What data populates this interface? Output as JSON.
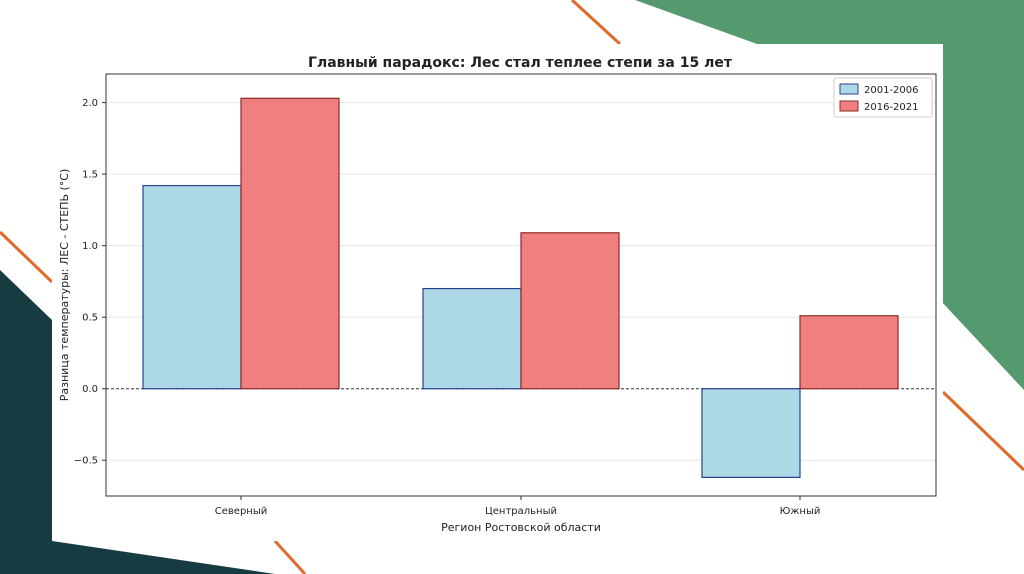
{
  "theme": {
    "green": "#559a6e",
    "dark_teal": "#163b40",
    "orange": "#e06a2a"
  },
  "chart_data": {
    "type": "bar",
    "title": "Главный парадокс: Лес стал теплее степи за 15 лет",
    "xlabel": "Регион Ростовской области",
    "ylabel": "Разница температуры: ЛЕС - СТЕПЬ (°C)",
    "categories": [
      "Северный",
      "Центральный",
      "Южный"
    ],
    "series": [
      {
        "name": "2001-2006",
        "values": [
          1.42,
          0.7,
          -0.62
        ],
        "fill": "#add8e6",
        "edge": "#2a3f8f"
      },
      {
        "name": "2016-2021",
        "values": [
          2.03,
          1.09,
          0.51
        ],
        "fill": "#f08080",
        "edge": "#8b2a2a"
      }
    ],
    "ylim": [
      -0.75,
      2.2
    ],
    "yticks": [
      "−0.5",
      "0.0",
      "0.5",
      "1.0",
      "1.5",
      "2.0"
    ],
    "ytick_values": [
      -0.5,
      0.0,
      0.5,
      1.0,
      1.5,
      2.0
    ],
    "zero_line": "dashed",
    "grid": "horizontal",
    "legend_position": "top-right"
  }
}
